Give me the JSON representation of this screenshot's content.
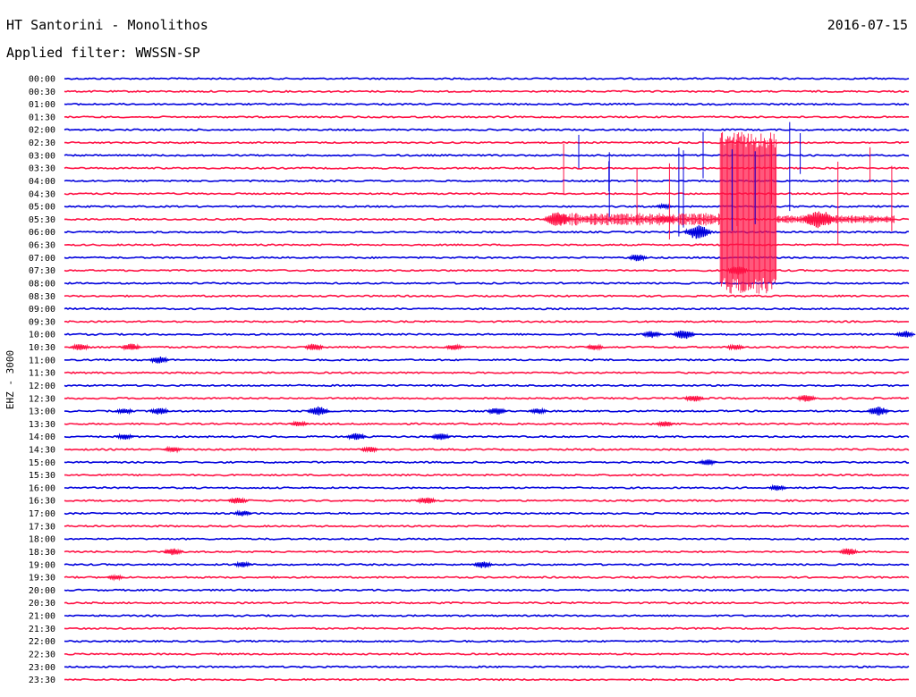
{
  "header": {
    "station": "HT Santorini - Monolithos",
    "date": "2016-07-15",
    "filter_text": "Applied filter: WWSSN-SP"
  },
  "chart_data": {
    "type": "line",
    "ylabel": "EHZ - 3000",
    "row_labels": [
      "00:00",
      "00:30",
      "01:00",
      "01:30",
      "02:00",
      "02:30",
      "03:00",
      "03:30",
      "04:00",
      "04:30",
      "05:00",
      "05:30",
      "06:00",
      "06:30",
      "07:00",
      "07:30",
      "08:00",
      "08:30",
      "09:00",
      "09:30",
      "10:00",
      "10:30",
      "11:00",
      "11:30",
      "12:00",
      "12:30",
      "13:00",
      "13:30",
      "14:00",
      "14:30",
      "15:00",
      "15:30",
      "16:00",
      "16:30",
      "17:00",
      "17:30",
      "18:00",
      "18:30",
      "19:00",
      "19:30",
      "20:00",
      "20:30",
      "21:00",
      "21:30",
      "22:00",
      "22:30",
      "23:00",
      "23:30"
    ],
    "x_range_minutes": [
      0,
      30
    ],
    "colors": {
      "even_rows": "#0000dd",
      "odd_rows": "#ff1144"
    },
    "events": [
      {
        "row": 10,
        "minute": 21.0,
        "amp": 1.0
      },
      {
        "row": 11,
        "minute": 17.0,
        "amp": 3.0
      },
      {
        "row": 11,
        "minute": 21.0,
        "amp": 1.5
      },
      {
        "row": 11,
        "minute": 26.2,
        "amp": 4.0
      },
      {
        "row": 12,
        "minute": 22.0,
        "amp": 3.0
      },
      {
        "row": 14,
        "minute": 20.0,
        "amp": 1.5
      },
      {
        "row": 15,
        "minute": 23.5,
        "amp": 2.0
      },
      {
        "row": 20,
        "minute": 20.5,
        "amp": 1.5
      },
      {
        "row": 20,
        "minute": 21.6,
        "amp": 2.0
      },
      {
        "row": 20,
        "minute": 29.5,
        "amp": 1.5
      },
      {
        "row": 21,
        "minute": 0.2,
        "amp": 1.5
      },
      {
        "row": 21,
        "minute": 2.0,
        "amp": 1.5
      },
      {
        "row": 21,
        "minute": 8.5,
        "amp": 1.5
      },
      {
        "row": 21,
        "minute": 13.5,
        "amp": 1.2
      },
      {
        "row": 21,
        "minute": 18.5,
        "amp": 1.2
      },
      {
        "row": 21,
        "minute": 23.5,
        "amp": 1.2
      },
      {
        "row": 22,
        "minute": 3.0,
        "amp": 1.5
      },
      {
        "row": 25,
        "minute": 22.0,
        "amp": 1.5
      },
      {
        "row": 25,
        "minute": 26.0,
        "amp": 1.5
      },
      {
        "row": 26,
        "minute": 1.8,
        "amp": 1.2
      },
      {
        "row": 26,
        "minute": 3.0,
        "amp": 1.5
      },
      {
        "row": 26,
        "minute": 8.6,
        "amp": 2.0
      },
      {
        "row": 26,
        "minute": 15.0,
        "amp": 1.5
      },
      {
        "row": 26,
        "minute": 16.5,
        "amp": 1.2
      },
      {
        "row": 26,
        "minute": 28.5,
        "amp": 2.0
      },
      {
        "row": 27,
        "minute": 8.0,
        "amp": 1.2
      },
      {
        "row": 27,
        "minute": 21.0,
        "amp": 1.2
      },
      {
        "row": 28,
        "minute": 1.8,
        "amp": 1.2
      },
      {
        "row": 28,
        "minute": 10.0,
        "amp": 1.5
      },
      {
        "row": 28,
        "minute": 13.0,
        "amp": 1.5
      },
      {
        "row": 29,
        "minute": 3.5,
        "amp": 1.2
      },
      {
        "row": 29,
        "minute": 10.5,
        "amp": 1.2
      },
      {
        "row": 30,
        "minute": 22.5,
        "amp": 1.2
      },
      {
        "row": 32,
        "minute": 25.0,
        "amp": 1.2
      },
      {
        "row": 33,
        "minute": 5.8,
        "amp": 1.5
      },
      {
        "row": 33,
        "minute": 12.5,
        "amp": 1.5
      },
      {
        "row": 34,
        "minute": 6.0,
        "amp": 1.2
      },
      {
        "row": 37,
        "minute": 3.5,
        "amp": 1.5
      },
      {
        "row": 37,
        "minute": 27.5,
        "amp": 1.5
      },
      {
        "row": 38,
        "minute": 6.0,
        "amp": 1.2
      },
      {
        "row": 38,
        "minute": 14.5,
        "amp": 1.5
      },
      {
        "row": 39,
        "minute": 1.5,
        "amp": 1.0
      }
    ],
    "swarm": {
      "rows": [
        5,
        6,
        7,
        8,
        9,
        10,
        11,
        12,
        13,
        14,
        15,
        16
      ],
      "start_minute": 17.5,
      "end_minute": 29.5,
      "burst_start_minute": 23.3,
      "burst_end_minute": 25.3
    }
  }
}
